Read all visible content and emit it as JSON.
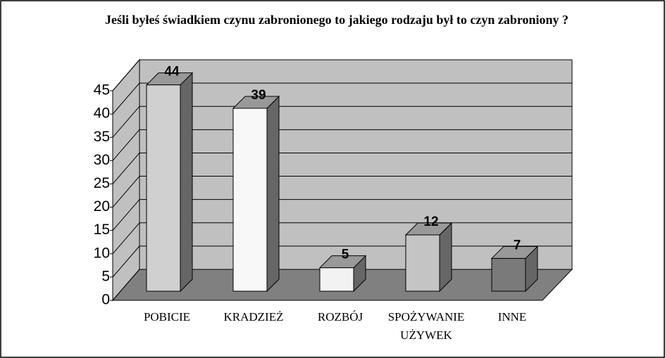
{
  "chart_data": {
    "type": "bar3d",
    "title": "Jeśli byłeś świadkiem czynu zabronionego to jakiego rodzaju był to czyn zabroniony ?",
    "categories": [
      "POBICIE",
      "KRADZIEŻ",
      "ROZBÓJ",
      "SPOŻYWANIE UŻYWEK",
      "INNE"
    ],
    "values": [
      44,
      39,
      5,
      12,
      7
    ],
    "colors": [
      "#d0d0d0",
      "#f8f8f8",
      "#f2f2f2",
      "#c4c4c4",
      "#7a7a7a"
    ],
    "ylim": [
      0,
      45
    ],
    "yticks": [
      0,
      5,
      10,
      15,
      20,
      25,
      30,
      35,
      40,
      45
    ],
    "grid": true
  }
}
